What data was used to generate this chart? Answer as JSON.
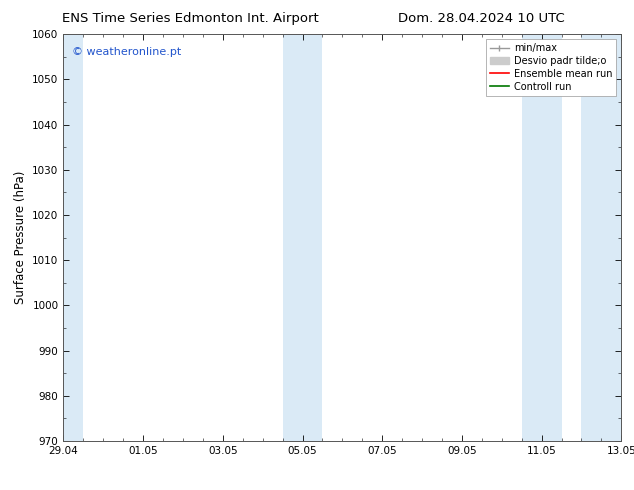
{
  "title_left": "ENS Time Series Edmonton Int. Airport",
  "title_right": "Dom. 28.04.2024 10 UTC",
  "ylabel": "Surface Pressure (hPa)",
  "ylim": [
    970,
    1060
  ],
  "yticks": [
    970,
    980,
    990,
    1000,
    1010,
    1020,
    1030,
    1040,
    1050,
    1060
  ],
  "xlim": [
    0,
    14
  ],
  "xtick_labels": [
    "29.04",
    "01.05",
    "03.05",
    "05.05",
    "07.05",
    "09.05",
    "11.05",
    "13.05"
  ],
  "xtick_positions": [
    0,
    2,
    4,
    6,
    8,
    10,
    12,
    14
  ],
  "n_minor_x": 4,
  "shaded_bands": [
    {
      "x_start": 0.0,
      "x_end": 0.5,
      "color": "#daeaf6"
    },
    {
      "x_start": 5.5,
      "x_end": 6.5,
      "color": "#daeaf6"
    },
    {
      "x_start": 11.5,
      "x_end": 12.5,
      "color": "#daeaf6"
    },
    {
      "x_start": 13.0,
      "x_end": 14.0,
      "color": "#daeaf6"
    }
  ],
  "watermark": "© weatheronline.pt",
  "watermark_color": "#2255cc",
  "legend_labels": [
    "min/max",
    "Desvio padr tilde;o",
    "Ensemble mean run",
    "Controll run"
  ],
  "legend_colors": [
    "#999999",
    "#cccccc",
    "#ff0000",
    "#007700"
  ],
  "bg_color": "#ffffff",
  "tick_fontsize": 7.5,
  "label_fontsize": 8.5,
  "title_fontsize": 9.5,
  "watermark_fontsize": 8
}
